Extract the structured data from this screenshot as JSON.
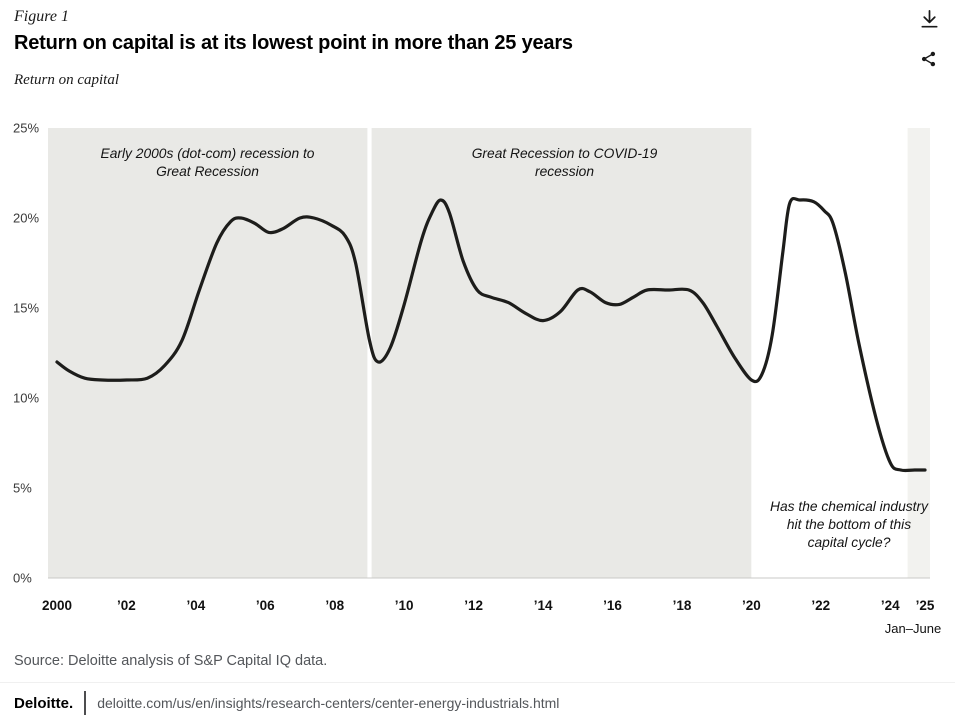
{
  "header": {
    "figure_label": "Figure 1",
    "title": "Return on capital is at its lowest point in more than 25 years",
    "subtitle": "Return on capital"
  },
  "icons": {
    "download": "download-icon",
    "share": "share-icon"
  },
  "chart_data": {
    "type": "line",
    "title": "Return on capital is at its lowest point in more than 25 years",
    "ylabel": "Return on capital",
    "unit": "%",
    "ylim": [
      0,
      25
    ],
    "xlim": [
      1999.7,
      2025.15
    ],
    "grid": false,
    "line_color": "#1d1d1b",
    "axis_line_color": "#c9c9c7",
    "yticks": [
      {
        "label": "0%",
        "v": 0
      },
      {
        "label": "5%",
        "v": 5
      },
      {
        "label": "10%",
        "v": 10
      },
      {
        "label": "15%",
        "v": 15
      },
      {
        "label": "20%",
        "v": 20
      },
      {
        "label": "25%",
        "v": 25
      }
    ],
    "xticks": [
      {
        "label": "2000",
        "x": 2000
      },
      {
        "label": "’02",
        "x": 2002
      },
      {
        "label": "’04",
        "x": 2004
      },
      {
        "label": "’06",
        "x": 2006
      },
      {
        "label": "’08",
        "x": 2008
      },
      {
        "label": "’10",
        "x": 2010
      },
      {
        "label": "’12",
        "x": 2012
      },
      {
        "label": "’14",
        "x": 2014
      },
      {
        "label": "’16",
        "x": 2016
      },
      {
        "label": "’18",
        "x": 2018
      },
      {
        "label": "’20",
        "x": 2020
      },
      {
        "label": "’22",
        "x": 2022
      },
      {
        "label": "’24",
        "x": 2024
      },
      {
        "label": "’25",
        "x": 2025
      }
    ],
    "x_note": "Jan–June",
    "regions": [
      {
        "label": "Early 2000s (dot-com) recession to Great Recession",
        "x0": 1999.7,
        "x1": 2008.94,
        "color": "#e9e9e6"
      },
      {
        "label": "Great Recession to COVID-19 recession",
        "x0": 2009.06,
        "x1": 2020,
        "color": "#e9e9e6"
      },
      {
        "label": "Has the chemical industry hit the bottom of this capital cycle?",
        "x0": 2020,
        "x1": 2025.15,
        "color": "#ffffff"
      },
      {
        "label": "",
        "x0": 2024.5,
        "x1": 2025.15,
        "color": "#f2f2ef"
      }
    ],
    "series": [
      {
        "name": "Return on capital",
        "points": [
          [
            2000.0,
            12.0
          ],
          [
            2000.35,
            11.5
          ],
          [
            2000.8,
            11.1
          ],
          [
            2001.3,
            11.0
          ],
          [
            2002.0,
            11.0
          ],
          [
            2002.6,
            11.1
          ],
          [
            2003.1,
            11.8
          ],
          [
            2003.6,
            13.2
          ],
          [
            2004.1,
            16.0
          ],
          [
            2004.6,
            18.6
          ],
          [
            2005.0,
            19.8
          ],
          [
            2005.3,
            20.0
          ],
          [
            2005.7,
            19.7
          ],
          [
            2006.1,
            19.2
          ],
          [
            2006.5,
            19.4
          ],
          [
            2007.0,
            20.0
          ],
          [
            2007.4,
            20.0
          ],
          [
            2007.9,
            19.6
          ],
          [
            2008.3,
            19.0
          ],
          [
            2008.6,
            17.5
          ],
          [
            2009.0,
            13.2
          ],
          [
            2009.25,
            12.0
          ],
          [
            2009.6,
            12.8
          ],
          [
            2010.0,
            15.2
          ],
          [
            2010.5,
            18.8
          ],
          [
            2010.8,
            20.3
          ],
          [
            2011.05,
            21.0
          ],
          [
            2011.3,
            20.3
          ],
          [
            2011.7,
            17.6
          ],
          [
            2012.1,
            16.0
          ],
          [
            2012.5,
            15.6
          ],
          [
            2013.0,
            15.3
          ],
          [
            2013.5,
            14.7
          ],
          [
            2014.0,
            14.3
          ],
          [
            2014.5,
            14.8
          ],
          [
            2015.0,
            16.0
          ],
          [
            2015.35,
            15.9
          ],
          [
            2015.8,
            15.3
          ],
          [
            2016.2,
            15.2
          ],
          [
            2016.6,
            15.6
          ],
          [
            2017.0,
            16.0
          ],
          [
            2017.6,
            16.0
          ],
          [
            2018.2,
            16.0
          ],
          [
            2018.6,
            15.3
          ],
          [
            2019.0,
            14.0
          ],
          [
            2019.5,
            12.3
          ],
          [
            2020.0,
            11.0
          ],
          [
            2020.3,
            11.3
          ],
          [
            2020.6,
            13.5
          ],
          [
            2020.9,
            18.0
          ],
          [
            2021.1,
            20.8
          ],
          [
            2021.4,
            21.0
          ],
          [
            2021.8,
            20.9
          ],
          [
            2022.1,
            20.4
          ],
          [
            2022.35,
            19.7
          ],
          [
            2022.7,
            17.0
          ],
          [
            2023.1,
            13.0
          ],
          [
            2023.6,
            8.8
          ],
          [
            2024.0,
            6.4
          ],
          [
            2024.3,
            6.0
          ],
          [
            2024.7,
            6.0
          ],
          [
            2025.0,
            6.0
          ]
        ]
      }
    ],
    "legend": null
  },
  "footer": {
    "source": "Source: Deloitte analysis of S&P Capital IQ data.",
    "brand": "Deloitte.",
    "url": "deloitte.com/us/en/insights/research-centers/center-energy-industrials.html"
  }
}
